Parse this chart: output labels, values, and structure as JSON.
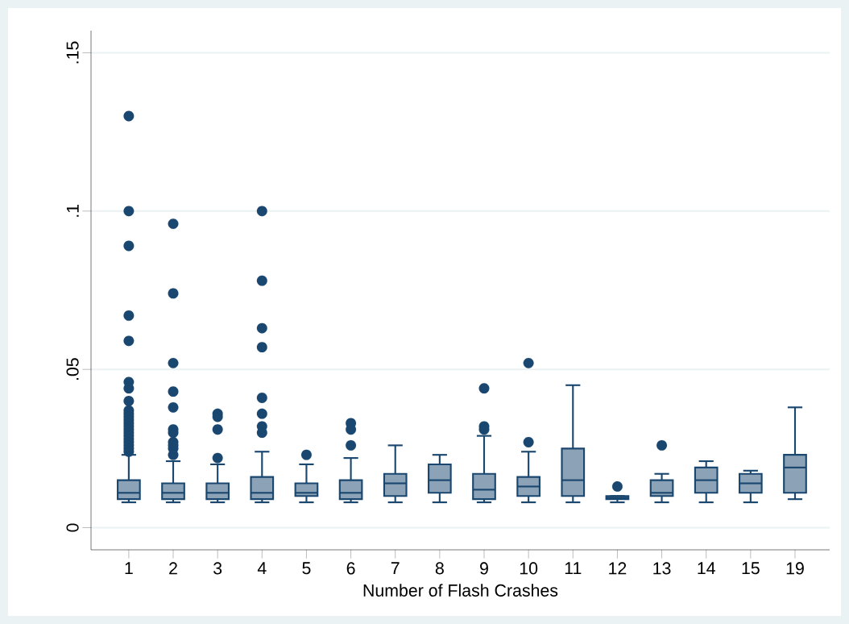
{
  "chart_data": {
    "type": "box",
    "xlabel": "Number of Flash Crashes",
    "categories": [
      "1",
      "2",
      "3",
      "4",
      "5",
      "6",
      "7",
      "8",
      "9",
      "10",
      "11",
      "12",
      "13",
      "14",
      "15",
      "19"
    ],
    "ylim": [
      -0.007,
      0.157
    ],
    "yticks": [
      0,
      {
        "value": 0.05,
        "label": ".05"
      },
      {
        "value": 0.1,
        "label": ".1"
      },
      {
        "value": 0.15,
        "label": ".15"
      }
    ],
    "grid": "y",
    "color": "#1a476f",
    "boxes": [
      {
        "low": 0.008,
        "q1": 0.009,
        "median": 0.011,
        "q3": 0.015,
        "high": 0.023,
        "outliers": [
          0.13,
          0.1,
          0.089,
          0.067,
          0.059,
          0.046,
          0.044,
          0.04,
          0.037,
          0.036,
          0.035,
          0.034,
          0.033,
          0.032,
          0.031,
          0.03,
          0.029,
          0.028,
          0.027,
          0.026,
          0.025,
          0.024
        ]
      },
      {
        "low": 0.008,
        "q1": 0.009,
        "median": 0.011,
        "q3": 0.014,
        "high": 0.021,
        "outliers": [
          0.096,
          0.074,
          0.052,
          0.043,
          0.038,
          0.031,
          0.03,
          0.027,
          0.026,
          0.025,
          0.023
        ]
      },
      {
        "low": 0.008,
        "q1": 0.009,
        "median": 0.011,
        "q3": 0.014,
        "high": 0.02,
        "outliers": [
          0.036,
          0.035,
          0.031,
          0.022
        ]
      },
      {
        "low": 0.008,
        "q1": 0.009,
        "median": 0.011,
        "q3": 0.016,
        "high": 0.024,
        "outliers": [
          0.1,
          0.078,
          0.063,
          0.057,
          0.041,
          0.036,
          0.032,
          0.03
        ]
      },
      {
        "low": 0.008,
        "q1": 0.01,
        "median": 0.011,
        "q3": 0.014,
        "high": 0.02,
        "outliers": [
          0.023
        ]
      },
      {
        "low": 0.008,
        "q1": 0.009,
        "median": 0.011,
        "q3": 0.015,
        "high": 0.022,
        "outliers": [
          0.033,
          0.031,
          0.026
        ]
      },
      {
        "low": 0.008,
        "q1": 0.01,
        "median": 0.014,
        "q3": 0.017,
        "high": 0.026
      },
      {
        "low": 0.008,
        "q1": 0.011,
        "median": 0.015,
        "q3": 0.02,
        "high": 0.023
      },
      {
        "low": 0.008,
        "q1": 0.009,
        "median": 0.012,
        "q3": 0.017,
        "high": 0.029,
        "outliers": [
          0.044,
          0.032,
          0.031
        ]
      },
      {
        "low": 0.008,
        "q1": 0.01,
        "median": 0.013,
        "q3": 0.016,
        "high": 0.024,
        "outliers": [
          0.052,
          0.027
        ]
      },
      {
        "low": 0.008,
        "q1": 0.01,
        "median": 0.015,
        "q3": 0.025,
        "high": 0.045
      },
      {
        "low": 0.008,
        "q1": 0.009,
        "median": 0.0095,
        "q3": 0.01,
        "high": 0.01,
        "outliers": [
          0.013
        ]
      },
      {
        "low": 0.008,
        "q1": 0.01,
        "median": 0.011,
        "q3": 0.015,
        "high": 0.017,
        "outliers": [
          0.026
        ]
      },
      {
        "low": 0.008,
        "q1": 0.011,
        "median": 0.015,
        "q3": 0.019,
        "high": 0.021
      },
      {
        "low": 0.008,
        "q1": 0.011,
        "median": 0.014,
        "q3": 0.017,
        "high": 0.018
      },
      {
        "low": 0.009,
        "q1": 0.011,
        "median": 0.019,
        "q3": 0.023,
        "high": 0.038
      }
    ]
  }
}
